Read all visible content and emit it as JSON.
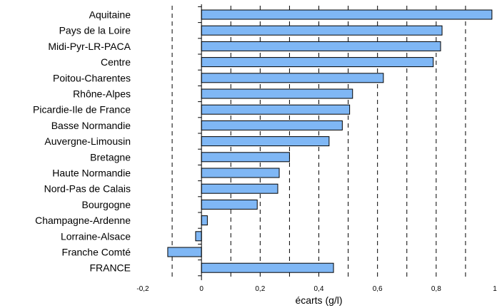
{
  "chart_data": {
    "type": "bar",
    "orientation": "horizontal",
    "categories": [
      "Aquitaine",
      "Pays de la Loire",
      "Midi-Pyr-LR-PACA",
      "Centre",
      "Poitou-Charentes",
      "Rhône-Alpes",
      "Picardie-Ile de France",
      "Basse Normandie",
      "Auvergne-Limousin",
      "Bretagne",
      "Haute Normandie",
      "Nord-Pas de Calais",
      "Bourgogne",
      "Champagne-Ardenne",
      "Lorraine-Alsace",
      "Franche Comté",
      "FRANCE"
    ],
    "values": [
      0.99,
      0.82,
      0.815,
      0.79,
      0.62,
      0.515,
      0.505,
      0.48,
      0.435,
      0.3,
      0.265,
      0.26,
      0.19,
      0.02,
      -0.02,
      -0.115,
      0.45
    ],
    "xlabel": "écarts (g/l)",
    "xlim": [
      -0.2,
      1
    ],
    "xticks": [
      -0.2,
      0,
      0.2,
      0.4,
      0.6,
      0.8,
      1
    ],
    "xtick_labels": [
      "-0,2",
      "0",
      "0,2",
      "0,4",
      "0,6",
      "0,8",
      "1"
    ],
    "gridlines": [
      -0.1,
      0.1,
      0.2,
      0.3,
      0.4,
      0.5,
      0.6,
      0.7,
      0.8,
      0.9
    ],
    "grid": "vertical dashed",
    "bar_color": "#7fb7f5",
    "bar_edge_color": "#000000"
  }
}
